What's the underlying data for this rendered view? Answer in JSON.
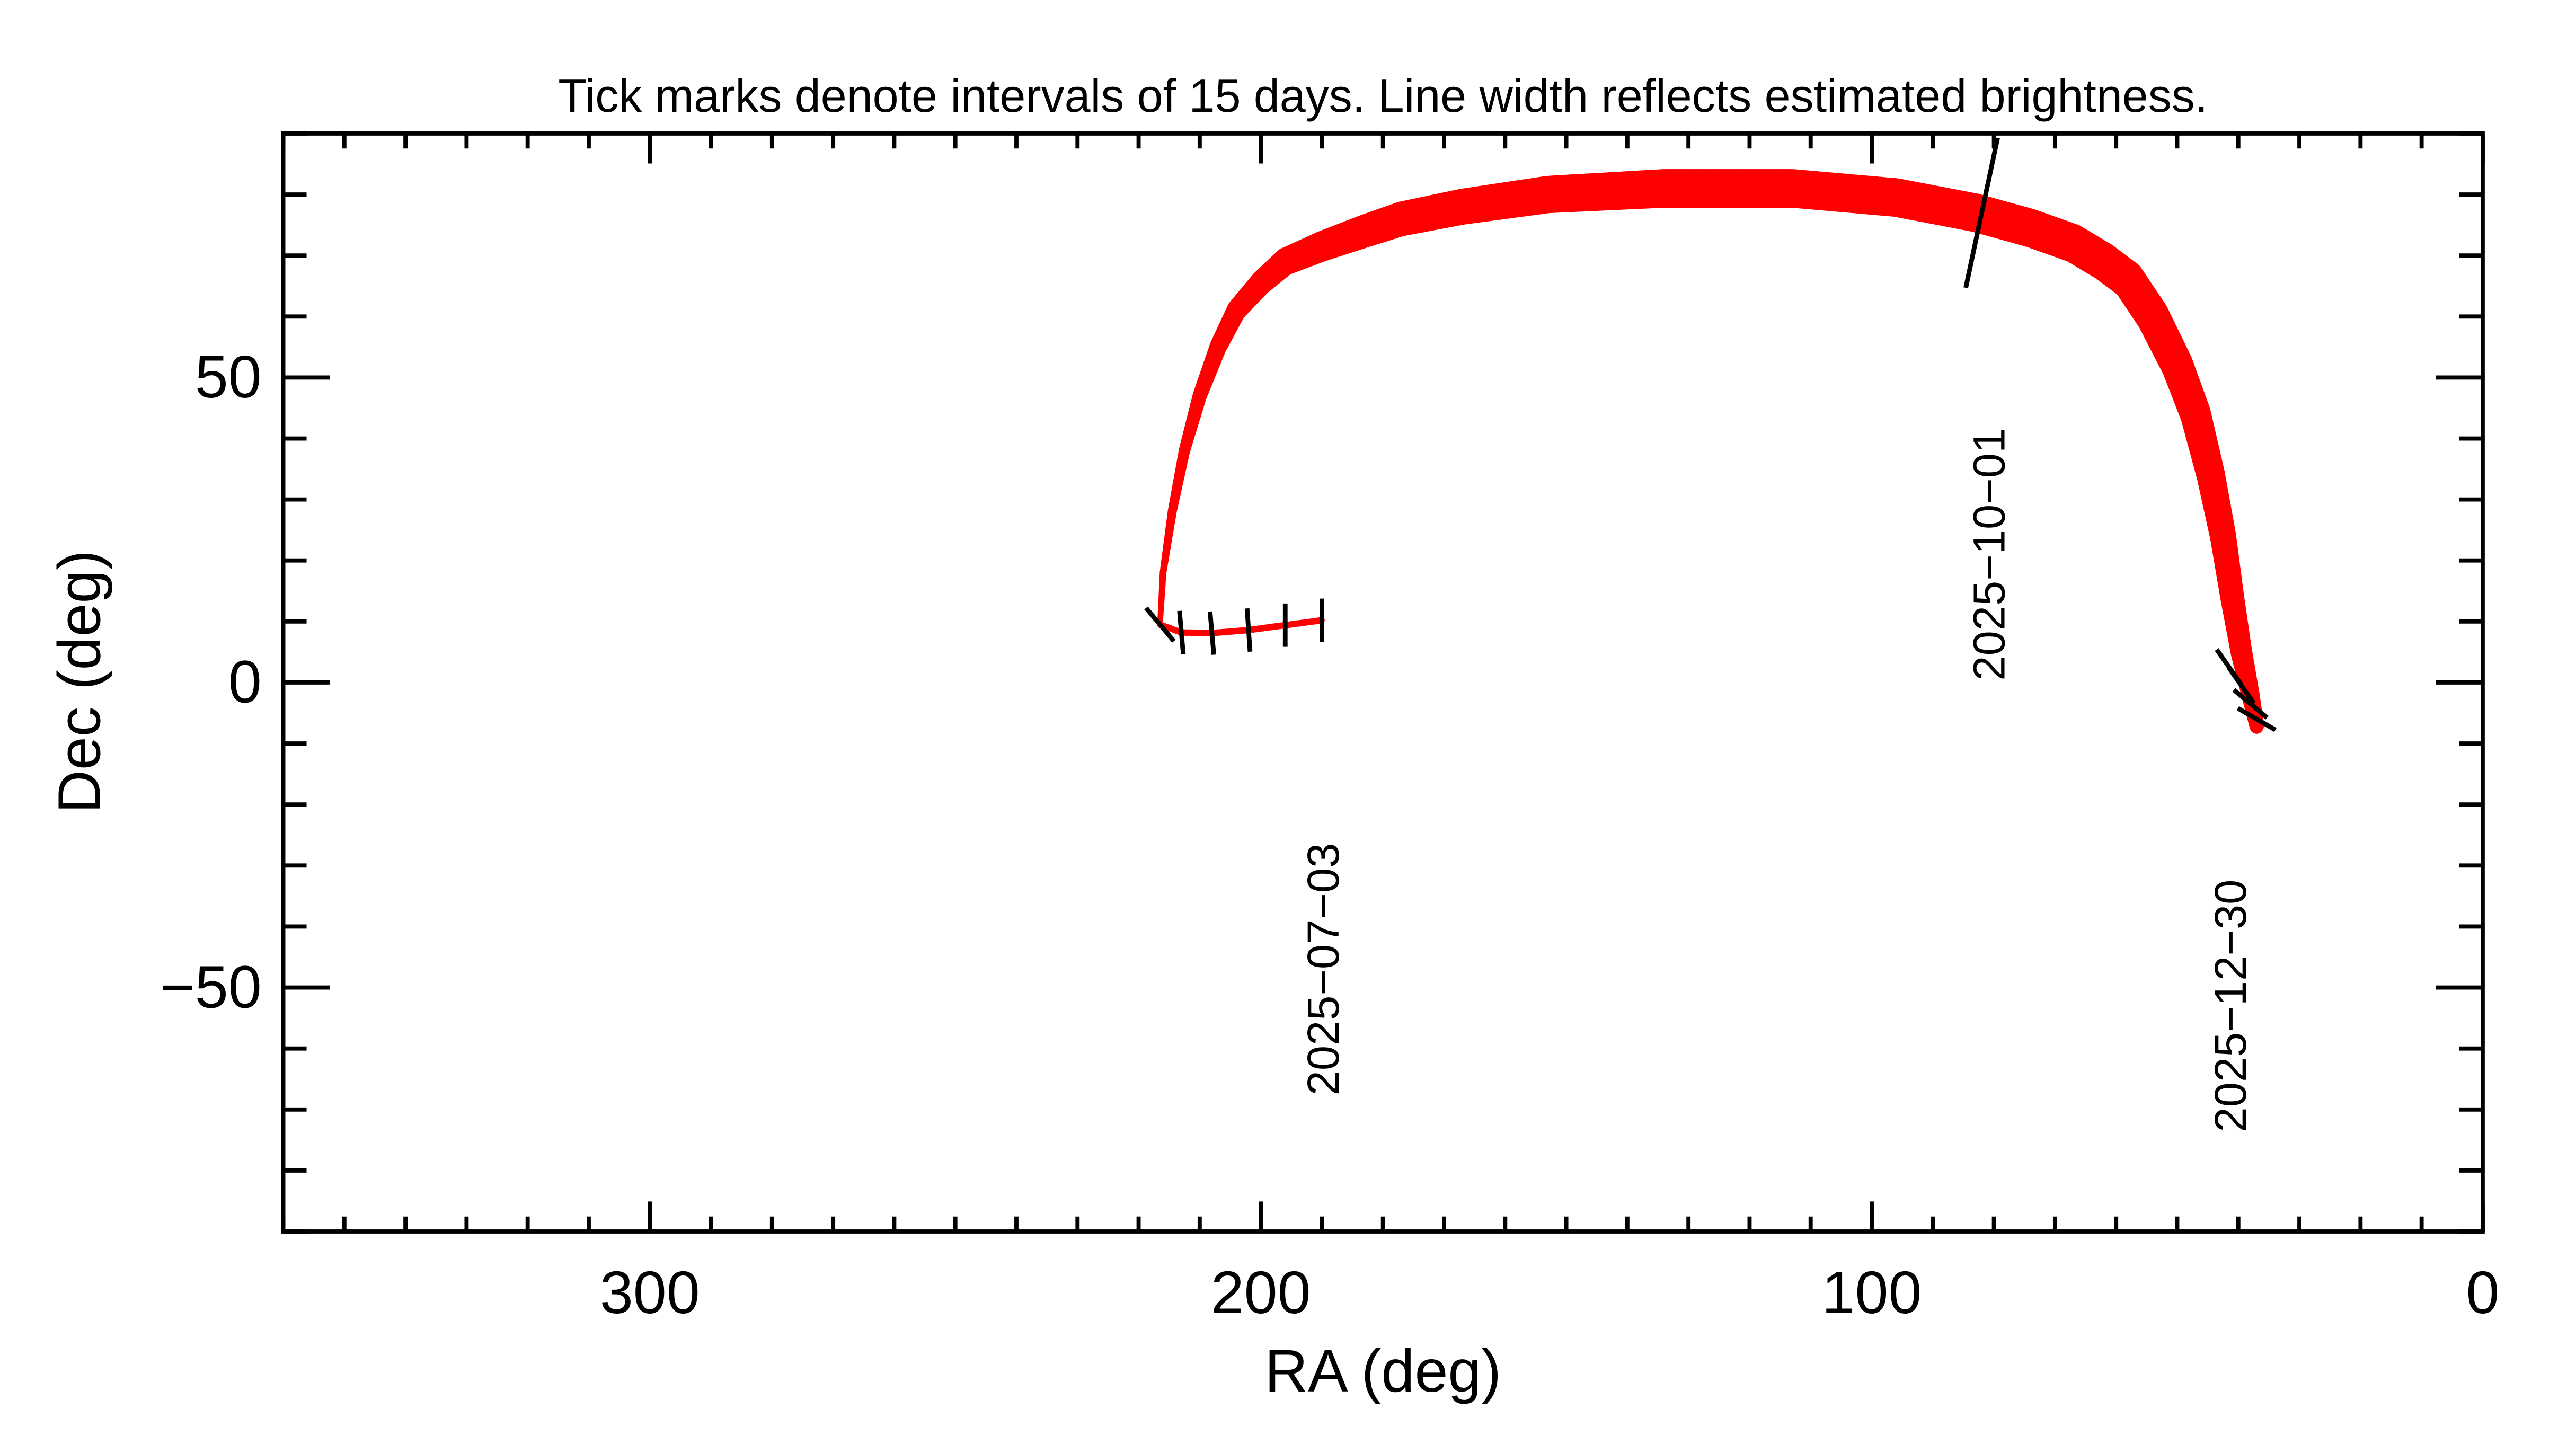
{
  "chart_data": {
    "type": "line",
    "title": "Tick marks denote intervals of 15 days.  Line width reflects estimated brightness.",
    "xlabel": "RA (deg)",
    "ylabel": "Dec (deg)",
    "xlim": [
      360,
      0
    ],
    "ylim": [
      -90,
      90
    ],
    "x_major_ticks": [
      300,
      200,
      100,
      0
    ],
    "x_tick_labels": [
      "300",
      "200",
      "100",
      "0"
    ],
    "x_minor_step": 10,
    "y_major_ticks": [
      50,
      0,
      -50
    ],
    "y_tick_labels": [
      "50",
      "0",
      "−50"
    ],
    "y_minor_step": 10,
    "grid": false,
    "line_color": "#ff0000",
    "tick_color": "#000000",
    "track": [
      {
        "ra": 190,
        "dec": 10.2,
        "w": 1.0
      },
      {
        "ra": 196,
        "dec": 9.4,
        "w": 1.0
      },
      {
        "ra": 202,
        "dec": 8.6,
        "w": 1.0
      },
      {
        "ra": 208,
        "dec": 8.1,
        "w": 1.0
      },
      {
        "ra": 213,
        "dec": 8.2,
        "w": 1.0
      },
      {
        "ra": 216.5,
        "dec": 9.5,
        "w": 1.0
      },
      {
        "ra": 216,
        "dec": 18,
        "w": 1.2
      },
      {
        "ra": 214.5,
        "dec": 28,
        "w": 1.6
      },
      {
        "ra": 212.5,
        "dec": 38,
        "w": 2.0
      },
      {
        "ra": 210,
        "dec": 47,
        "w": 2.5
      },
      {
        "ra": 207,
        "dec": 55,
        "w": 3.0
      },
      {
        "ra": 204,
        "dec": 61,
        "w": 3.4
      },
      {
        "ra": 200,
        "dec": 65.5,
        "w": 3.8
      },
      {
        "ra": 196,
        "dec": 69,
        "w": 4.2
      },
      {
        "ra": 190,
        "dec": 71.5,
        "w": 4.6
      },
      {
        "ra": 183,
        "dec": 74,
        "w": 5.0
      },
      {
        "ra": 177,
        "dec": 76,
        "w": 5.2
      },
      {
        "ra": 167,
        "dec": 78,
        "w": 5.4
      },
      {
        "ra": 153,
        "dec": 80,
        "w": 5.6
      },
      {
        "ra": 134,
        "dec": 81,
        "w": 5.8
      },
      {
        "ra": 113,
        "dec": 81,
        "w": 5.8
      },
      {
        "ra": 96,
        "dec": 79.5,
        "w": 5.8
      },
      {
        "ra": 83,
        "dec": 77,
        "w": 5.8
      },
      {
        "ra": 74,
        "dec": 74.5,
        "w": 5.8
      },
      {
        "ra": 67,
        "dec": 72,
        "w": 5.8
      },
      {
        "ra": 62,
        "dec": 69,
        "w": 5.8
      },
      {
        "ra": 58,
        "dec": 66,
        "w": 5.8
      },
      {
        "ra": 54,
        "dec": 60,
        "w": 5.8
      },
      {
        "ra": 50,
        "dec": 52,
        "w": 5.6
      },
      {
        "ra": 47,
        "dec": 44,
        "w": 5.4
      },
      {
        "ra": 44.5,
        "dec": 34,
        "w": 5.0
      },
      {
        "ra": 42.5,
        "dec": 24,
        "w": 4.6
      },
      {
        "ra": 41,
        "dec": 14,
        "w": 4.2
      },
      {
        "ra": 39.5,
        "dec": 5,
        "w": 3.8
      },
      {
        "ra": 38,
        "dec": -2,
        "w": 3.2
      },
      {
        "ra": 37,
        "dec": -7,
        "w": 2.6
      }
    ],
    "date_ticks": [
      {
        "ra": 190,
        "dec": 10.2,
        "angle": 0
      },
      {
        "ra": 196,
        "dec": 9.4,
        "angle": 0
      },
      {
        "ra": 202,
        "dec": 8.6,
        "angle": -4
      },
      {
        "ra": 208,
        "dec": 8.1,
        "angle": -5
      },
      {
        "ra": 213,
        "dec": 8.2,
        "angle": -5
      },
      {
        "ra": 216.5,
        "dec": 9.5,
        "angle": -40
      },
      {
        "ra": 82,
        "dec": 77,
        "angle": 12
      },
      {
        "ra": 41.5,
        "dec": 2.5,
        "angle": -35
      },
      {
        "ra": 39.5,
        "dec": -0.5,
        "angle": -35
      },
      {
        "ra": 38,
        "dec": -3.5,
        "angle": -50
      },
      {
        "ra": 37,
        "dec": -6,
        "angle": -60
      }
    ],
    "date_labels": [
      {
        "text": "2025−07−03",
        "ra": 190,
        "dec": -47
      },
      {
        "text": "2025−10−01",
        "ra": 81,
        "dec": 21
      },
      {
        "text": "2025−12−30",
        "ra": 41.5,
        "dec": -53
      }
    ]
  }
}
